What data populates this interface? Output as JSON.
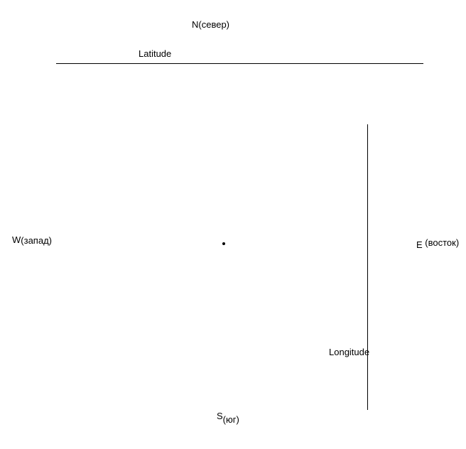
{
  "directions": {
    "north": {
      "letter": "N",
      "sub": "(север)"
    },
    "west": {
      "letter": "W",
      "sub": "(запад)"
    },
    "east": {
      "letter": "E",
      "sub": " (восток)"
    },
    "south": {
      "letter": "S",
      "sub": "(юг)"
    }
  },
  "latitude": {
    "label": "Latitude"
  },
  "longitude": {
    "label": "Longitude"
  },
  "colors": {
    "ink": "#000000",
    "background": "#ffffff"
  }
}
